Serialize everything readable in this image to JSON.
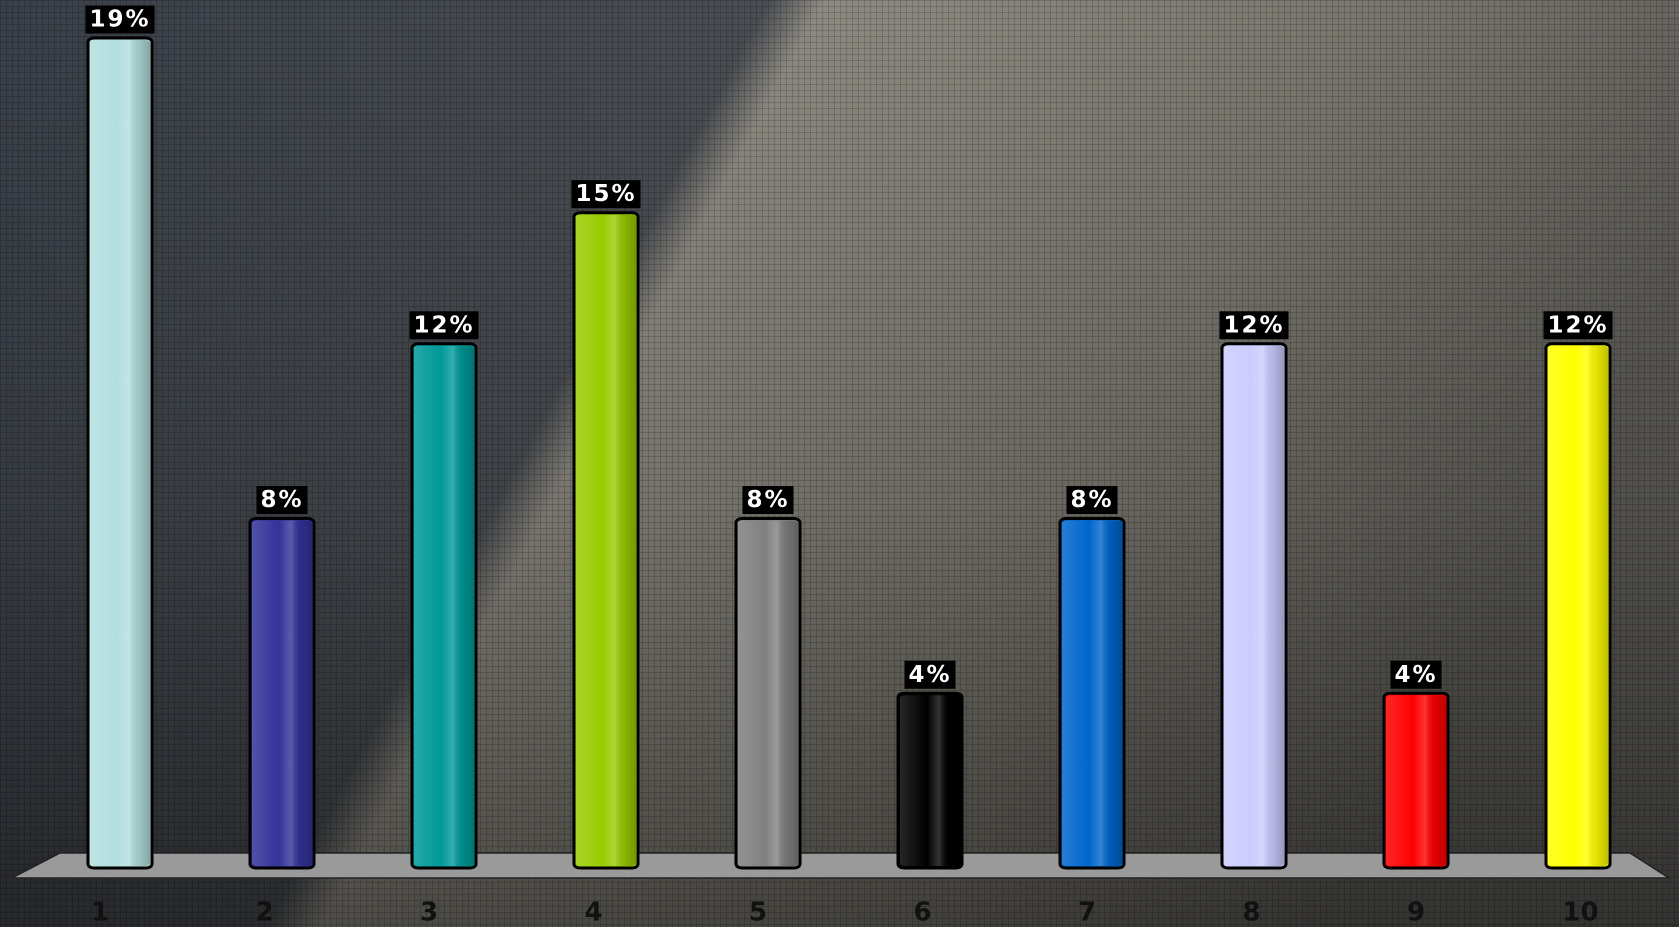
{
  "chart_data": {
    "type": "bar",
    "categories": [
      "1",
      "2",
      "3",
      "4",
      "5",
      "6",
      "7",
      "8",
      "9",
      "10"
    ],
    "values": [
      19,
      8,
      12,
      15,
      8,
      4,
      8,
      12,
      4,
      12
    ],
    "value_labels": [
      "19%",
      "8%",
      "12%",
      "15%",
      "8%",
      "4%",
      "8%",
      "12%",
      "4%",
      "12%"
    ],
    "colors": [
      "#b3dede",
      "#33339a",
      "#009999",
      "#99cc00",
      "#808080",
      "#000000",
      "#0066cc",
      "#ccccff",
      "#ff0000",
      "#ffff00"
    ]
  }
}
